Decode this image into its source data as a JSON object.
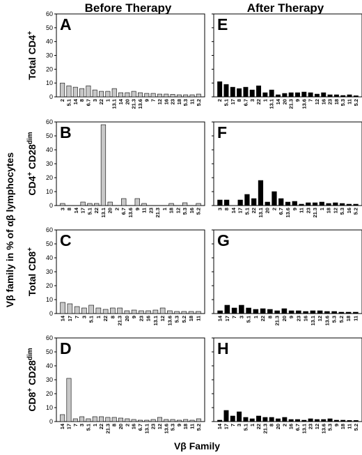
{
  "figure": {
    "column_titles": [
      "Before Therapy",
      "After Therapy"
    ],
    "row_titles": [
      {
        "main": "Total CD4",
        "sup": "+",
        "tail": "",
        "tailsup": ""
      },
      {
        "main": "CD4",
        "sup": "+",
        "tail": " CD28",
        "tailsup": "dim"
      },
      {
        "main": "Total CD8",
        "sup": "+",
        "tail": "",
        "tailsup": ""
      },
      {
        "main": "CD8",
        "sup": "+",
        "tail": " CD28",
        "tailsup": "dim"
      }
    ],
    "y_axis_title": "Vβ family in % of αβ lymphocytes",
    "x_axis_title": "Vβ Family"
  },
  "chart_data": [
    {
      "type": "bar",
      "panel": "A",
      "color": "#c8c8c8",
      "categories": [
        "2",
        "5.1",
        "14",
        "8",
        "6.7",
        "3",
        "22",
        "1",
        "13.1",
        "14",
        "20",
        "21.3",
        "13.6",
        "9",
        "7",
        "12",
        "16",
        "23",
        "18",
        "5.3",
        "11",
        "5.2"
      ],
      "values": [
        10,
        8,
        7,
        6,
        8,
        5,
        4,
        4,
        6,
        3,
        3,
        4,
        3,
        2.5,
        2.5,
        2,
        2,
        1.8,
        1.5,
        1.5,
        1.5,
        2
      ],
      "ylim": [
        0,
        60
      ],
      "yticks": [
        0,
        10,
        20,
        30,
        40,
        50,
        60
      ]
    },
    {
      "type": "bar",
      "panel": "E",
      "color": "#000000",
      "categories": [
        "2",
        "5.1",
        "17",
        "8",
        "6.7",
        "3",
        "22",
        "1",
        "13.1",
        "14",
        "20",
        "21.3",
        "9",
        "13.6",
        "7",
        "12",
        "16",
        "23",
        "18",
        "5.3",
        "11",
        "5.2"
      ],
      "values": [
        11,
        9,
        7,
        6,
        7,
        5,
        8,
        3,
        5,
        1.5,
        2.5,
        3,
        3,
        3.5,
        3,
        2,
        3,
        1.5,
        1.5,
        1,
        1.5,
        0.8
      ],
      "ylim": [
        0,
        60
      ],
      "yticks": [
        0,
        10,
        20,
        30,
        40,
        50,
        60
      ]
    },
    {
      "type": "bar",
      "panel": "B",
      "color": "#c8c8c8",
      "categories": [
        "3",
        "8",
        "14",
        "17",
        "5.1",
        "22",
        "13.1",
        "20",
        "2",
        "6.7",
        "13.6",
        "9",
        "11",
        "23",
        "21.3",
        "1",
        "18",
        "12",
        "5.3",
        "16",
        "5.2"
      ],
      "values": [
        1.5,
        0,
        0,
        2.5,
        1.5,
        1.5,
        58,
        2.5,
        0,
        5,
        0,
        5,
        1.5,
        0,
        0,
        0,
        1.5,
        0,
        2,
        0,
        1.5
      ],
      "ylim": [
        0,
        60
      ],
      "yticks": [
        0,
        10,
        20,
        30,
        40,
        50,
        60
      ]
    },
    {
      "type": "bar",
      "panel": "F",
      "color": "#000000",
      "categories": [
        "3",
        "8",
        "14",
        "17",
        "5.1",
        "22",
        "13.1",
        "20",
        "2",
        "6.7",
        "13.6",
        "9",
        "11",
        "23",
        "21.3",
        "1",
        "18",
        "12",
        "5.3",
        "16",
        "5.2"
      ],
      "values": [
        4,
        4,
        0,
        4,
        8,
        5,
        18,
        2.5,
        10,
        5,
        2.5,
        3,
        1,
        2,
        2,
        2.5,
        1.5,
        2,
        1.5,
        1,
        1
      ],
      "ylim": [
        0,
        60
      ],
      "yticks": [
        0,
        10,
        20,
        30,
        40,
        50,
        60
      ]
    },
    {
      "type": "bar",
      "panel": "C",
      "color": "#c8c8c8",
      "categories": [
        "14",
        "17",
        "7",
        "3",
        "5.1",
        "1",
        "22",
        "8",
        "21.3",
        "20",
        "9",
        "23",
        "16",
        "13.1",
        "12",
        "13.6",
        "5.3",
        "5.2",
        "18",
        "11"
      ],
      "values": [
        8,
        7,
        5,
        4,
        6,
        4,
        3,
        4,
        4,
        2,
        2.5,
        2,
        2,
        2.5,
        4,
        2,
        1.5,
        1.5,
        1.5,
        1.5
      ],
      "ylim": [
        0,
        60
      ],
      "yticks": [
        0,
        10,
        20,
        30,
        40,
        50,
        60
      ]
    },
    {
      "type": "bar",
      "panel": "G",
      "color": "#000000",
      "categories": [
        "14",
        "17",
        "7",
        "3",
        "5.1",
        "1",
        "22",
        "8",
        "21.3",
        "20",
        "9",
        "23",
        "16",
        "13.1",
        "12",
        "13.6",
        "5.3",
        "5.2",
        "18",
        "11"
      ],
      "values": [
        2,
        6,
        4,
        6,
        4,
        3,
        3.5,
        3,
        2,
        3.5,
        2,
        2,
        1.5,
        2,
        2,
        1.5,
        1.5,
        1,
        1,
        1
      ],
      "ylim": [
        0,
        60
      ],
      "yticks": [
        0,
        10,
        20,
        30,
        40,
        50,
        60
      ]
    },
    {
      "type": "bar",
      "panel": "D",
      "color": "#c8c8c8",
      "categories": [
        "14",
        "17",
        "7",
        "3",
        "5.1",
        "1",
        "22",
        "21.3",
        "8",
        "20",
        "2",
        "16",
        "6.7",
        "13.1",
        "23",
        "12",
        "13.6",
        "5.3",
        "9",
        "18",
        "11",
        "5.2"
      ],
      "values": [
        5,
        31,
        2,
        3.5,
        2,
        3.5,
        3.5,
        3,
        3,
        2.5,
        2,
        1.5,
        1,
        1,
        1.5,
        3,
        1.5,
        1.5,
        1,
        1.5,
        1,
        2
      ],
      "ylim": [
        0,
        60
      ],
      "yticks": [
        0,
        10,
        20,
        30,
        40,
        50,
        60
      ]
    },
    {
      "type": "bar",
      "panel": "H",
      "color": "#000000",
      "categories": [
        "14",
        "17",
        "7",
        "3",
        "5.1",
        "1",
        "22",
        "21.3",
        "8",
        "20",
        "2",
        "16",
        "6.7",
        "13.1",
        "23",
        "12",
        "13.6",
        "5.3",
        "9",
        "18",
        "11",
        "5.2"
      ],
      "values": [
        1,
        8,
        4,
        7,
        3,
        2,
        4,
        3,
        3,
        2,
        3,
        1.5,
        1.5,
        1,
        2,
        1.5,
        1.5,
        2,
        1,
        1,
        0.8,
        0.8
      ],
      "ylim": [
        0,
        60
      ],
      "yticks": [
        0,
        10,
        20,
        30,
        40,
        50,
        60
      ]
    }
  ]
}
